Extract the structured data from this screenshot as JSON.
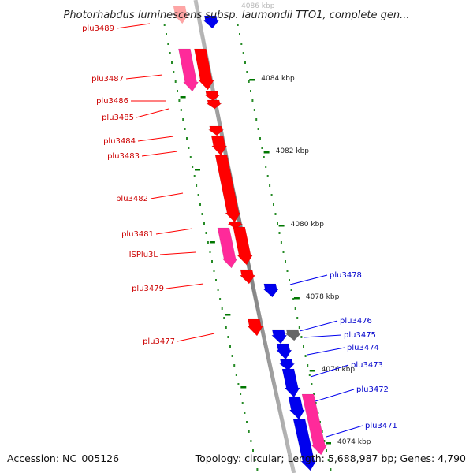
{
  "title": "Photorhabdus luminescens subsp. laumondii TTO1, complete gen...",
  "top_tick_label": "4086 kbp",
  "footer": {
    "accession": "Accession: NC_005126",
    "summary": "Topology: circular; Length: 5,688,987 bp; Genes: 4,790"
  },
  "colors": {
    "forward_gene": "#ff0000",
    "forward_is": "#ff2a9a",
    "reverse_gene": "#0000ee",
    "reverse_pseudo": "#ff2a9a",
    "other_gene": "#666666",
    "backbone": "#8c8c8c",
    "tick": "#007700"
  },
  "ticks": [
    {
      "label": "4084 kbp"
    },
    {
      "label": "4082 kbp"
    },
    {
      "label": "4080 kbp"
    },
    {
      "label": "4078 kbp"
    },
    {
      "label": "4076 kbp"
    },
    {
      "label": "4074 kbp"
    }
  ],
  "left_labels": [
    {
      "text": "plu3489"
    },
    {
      "text": "plu3487"
    },
    {
      "text": "plu3486"
    },
    {
      "text": "plu3485"
    },
    {
      "text": "plu3484"
    },
    {
      "text": "plu3483"
    },
    {
      "text": "plu3482"
    },
    {
      "text": "plu3481"
    },
    {
      "text": "ISPlu3L"
    },
    {
      "text": "plu3479"
    },
    {
      "text": "plu3477"
    }
  ],
  "right_labels": [
    {
      "text": "plu3478"
    },
    {
      "text": "plu3476"
    },
    {
      "text": "plu3475"
    },
    {
      "text": "plu3474"
    },
    {
      "text": "plu3473"
    },
    {
      "text": "plu3472"
    },
    {
      "text": "plu3471"
    }
  ]
}
